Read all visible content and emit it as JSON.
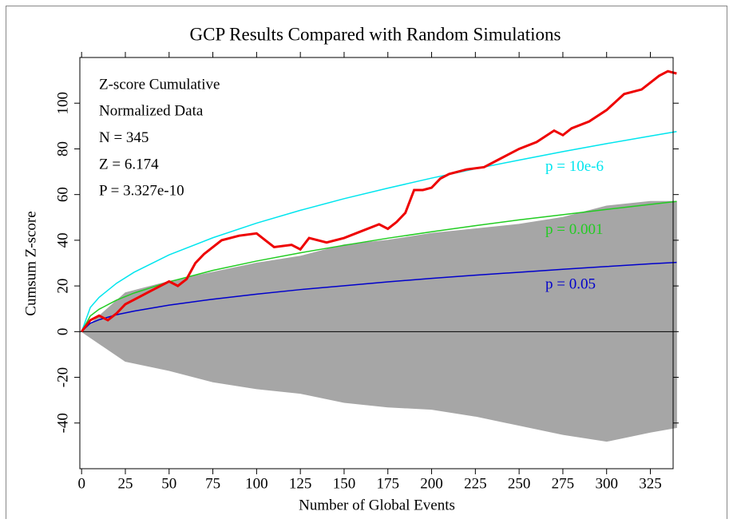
{
  "chart_data": {
    "type": "line",
    "title": "GCP Results Compared with Random Simulations",
    "x_label": "Number of Global Events",
    "y_label": "Cumsum Z-score",
    "annotations": [
      "Z-score Cumulative",
      "Normalized Data",
      "N = 345",
      "Z = 6.174",
      "P = 3.327e-10"
    ],
    "xlim": [
      -1,
      338
    ],
    "ylim": [
      -60,
      120
    ],
    "xticks": [
      0,
      25,
      50,
      75,
      100,
      125,
      150,
      175,
      200,
      225,
      250,
      275,
      300,
      325
    ],
    "yticks": [
      -40,
      -20,
      0,
      20,
      40,
      60,
      80,
      100
    ],
    "simulations": {
      "color": "#a6a6a6",
      "x": [
        0,
        25,
        50,
        75,
        100,
        125,
        150,
        175,
        200,
        225,
        250,
        275,
        300,
        325,
        340
      ],
      "upper": [
        0,
        17,
        22,
        26,
        30,
        33,
        38,
        40,
        43,
        45,
        47,
        50,
        55,
        57,
        57
      ],
      "lower": [
        0,
        -13,
        -17,
        -22,
        -25,
        -27,
        -31,
        -33,
        -34,
        -37,
        -41,
        -45,
        -48,
        -44,
        -42
      ]
    },
    "series": [
      {
        "name": "p = 10e-6",
        "color": "#00e5ee",
        "x": [
          0,
          5,
          10,
          20,
          30,
          50,
          75,
          100,
          125,
          150,
          175,
          200,
          225,
          250,
          275,
          300,
          325,
          340
        ],
        "values": [
          0,
          10.6,
          15.0,
          21.2,
          26.0,
          33.6,
          41.1,
          47.5,
          53.1,
          58.2,
          62.8,
          67.2,
          71.3,
          75.1,
          78.8,
          82.3,
          85.6,
          87.6
        ]
      },
      {
        "name": "p = 0.001",
        "color": "#22cc22",
        "x": [
          0,
          5,
          10,
          20,
          30,
          50,
          75,
          100,
          125,
          150,
          175,
          200,
          225,
          250,
          275,
          300,
          325,
          340
        ],
        "values": [
          0,
          6.9,
          9.8,
          13.8,
          16.9,
          21.8,
          26.8,
          30.9,
          34.5,
          37.8,
          40.9,
          43.7,
          46.4,
          48.9,
          51.2,
          53.5,
          55.7,
          57.0
        ]
      },
      {
        "name": "p = 0.05",
        "color": "#0000cc",
        "x": [
          0,
          5,
          10,
          20,
          30,
          50,
          75,
          100,
          125,
          150,
          175,
          200,
          225,
          250,
          275,
          300,
          325,
          340
        ],
        "values": [
          0,
          3.7,
          5.2,
          7.4,
          9.0,
          11.6,
          14.2,
          16.4,
          18.4,
          20.1,
          21.8,
          23.3,
          24.7,
          26.0,
          27.3,
          28.5,
          29.7,
          30.3
        ]
      },
      {
        "name": "GCP",
        "color": "#ee0000",
        "x": [
          0,
          5,
          10,
          15,
          20,
          25,
          30,
          40,
          50,
          55,
          60,
          65,
          70,
          80,
          90,
          100,
          105,
          110,
          120,
          125,
          130,
          140,
          150,
          160,
          170,
          175,
          180,
          185,
          190,
          195,
          200,
          205,
          210,
          220,
          230,
          240,
          250,
          260,
          270,
          275,
          280,
          290,
          300,
          310,
          320,
          330,
          335,
          340
        ],
        "values": [
          0,
          5,
          7,
          5,
          8,
          12,
          14,
          18,
          22,
          20,
          23,
          30,
          34,
          40,
          42,
          43,
          40,
          37,
          38,
          36,
          41,
          39,
          41,
          44,
          47,
          45,
          48,
          52,
          62,
          62,
          63,
          67,
          69,
          71,
          72,
          76,
          80,
          83,
          88,
          86,
          89,
          92,
          97,
          104,
          106,
          112,
          114,
          113
        ]
      }
    ]
  }
}
